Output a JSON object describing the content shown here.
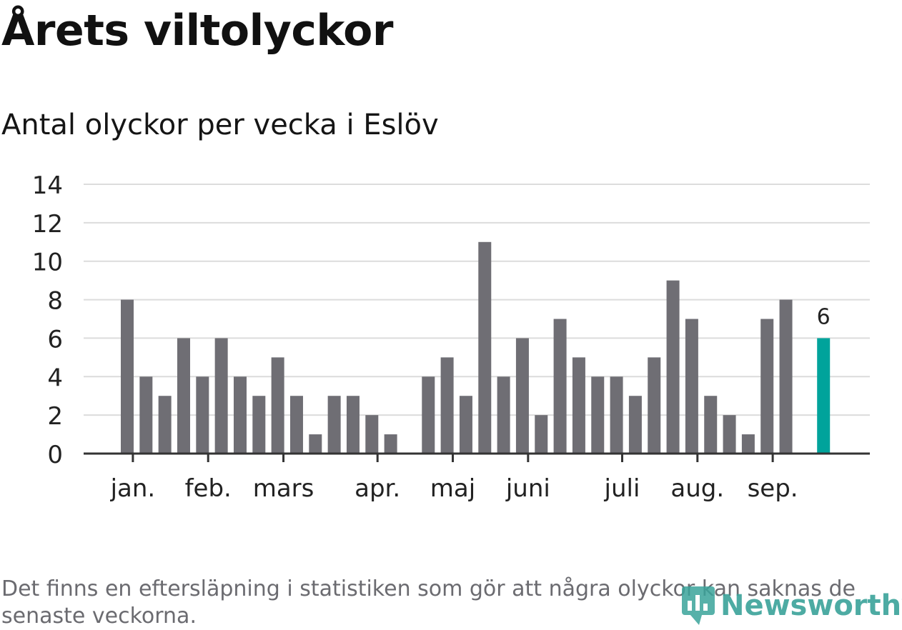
{
  "title": "Årets viltolyckor",
  "subtitle": "Antal olyckor per vecka i Eslöv",
  "footnote": "Det finns en eftersläpning i statistiken som gör att några olyckor kan saknas de senaste veckorna.",
  "brand": {
    "name": "Newsworthy",
    "icon": "newsworthy-logo-icon"
  },
  "colors": {
    "bar": "#6f6e74",
    "highlight": "#00a39b",
    "grid": "#dcdcdc",
    "axis": "#333333",
    "text": "#222222"
  },
  "chart_data": {
    "type": "bar",
    "title": "Årets viltolyckor",
    "subtitle": "Antal olyckor per vecka i Eslöv",
    "xlabel": "",
    "ylabel": "",
    "ylim": [
      0,
      14
    ],
    "yticks": [
      0,
      2,
      4,
      6,
      8,
      10,
      12,
      14
    ],
    "grid": true,
    "week_count": 38,
    "values": [
      8,
      4,
      3,
      6,
      4,
      6,
      4,
      3,
      5,
      3,
      1,
      3,
      3,
      2,
      1,
      0,
      4,
      5,
      3,
      11,
      4,
      6,
      2,
      7,
      5,
      4,
      4,
      3,
      5,
      9,
      7,
      3,
      2,
      1,
      7,
      8,
      null,
      6
    ],
    "highlight_index": 37,
    "highlight_label": "6",
    "month_ticks": [
      {
        "label": "jan.",
        "week": 0.3
      },
      {
        "label": "feb.",
        "week": 4.3
      },
      {
        "label": "mars",
        "week": 8.3
      },
      {
        "label": "apr.",
        "week": 13.3
      },
      {
        "label": "maj",
        "week": 17.3
      },
      {
        "label": "juni",
        "week": 21.3
      },
      {
        "label": "juli",
        "week": 26.3
      },
      {
        "label": "aug.",
        "week": 30.3
      },
      {
        "label": "sep.",
        "week": 34.3
      }
    ]
  }
}
